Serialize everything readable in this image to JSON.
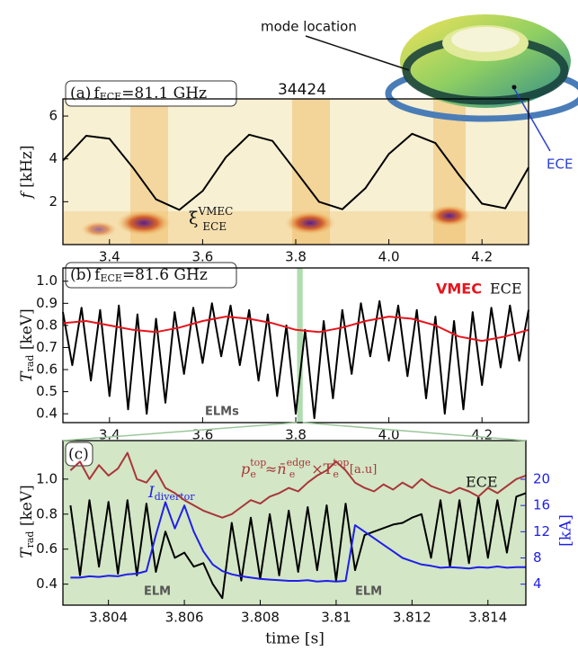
{
  "illustration": {
    "labels": [
      "mode location",
      "ECE"
    ]
  },
  "chart_data": [
    {
      "type": "line",
      "title": "34424",
      "panel_label": "(a)",
      "panel_freq": [
        "f",
        "ECE",
        "=81.1 GHz"
      ],
      "ylabel": [
        "f",
        " [kHz]"
      ],
      "annotation": [
        "ξ",
        "VMEC",
        "ECE"
      ],
      "x": [
        3.3,
        3.35,
        3.4,
        3.45,
        3.5,
        3.55,
        3.6,
        3.65,
        3.7,
        3.75,
        3.8,
        3.85,
        3.9,
        3.95,
        4.0,
        4.05,
        4.1,
        4.15,
        4.2,
        4.25,
        4.3
      ],
      "series": [
        {
          "color": "#000000",
          "values": [
            3.92,
            5.08,
            4.94,
            3.6,
            2.11,
            1.62,
            2.5,
            4.08,
            5.13,
            4.84,
            3.43,
            2.0,
            1.65,
            2.64,
            4.23,
            5.17,
            4.74,
            3.27,
            1.91,
            1.69,
            3.6
          ]
        }
      ],
      "xlim": [
        3.3,
        4.3
      ],
      "ylim": [
        0,
        6.8
      ],
      "xticks": [
        3.4,
        3.6,
        3.8,
        {
          "value": 4.0,
          "label": "4.0"
        },
        4.2
      ],
      "yticks": [
        2,
        4,
        6
      ]
    },
    {
      "type": "line",
      "panel_label": "(b)",
      "panel_freq": [
        "f",
        "ECE",
        "=81.6 GHz"
      ],
      "ylabel": [
        "T",
        "rad",
        " [keV]"
      ],
      "annotations": [
        "ELMs"
      ],
      "series": [
        {
          "name": "ECE",
          "color": "#000000",
          "x": [
            3.3,
            3.32,
            3.34,
            3.36,
            3.38,
            3.4,
            3.42,
            3.44,
            3.46,
            3.48,
            3.5,
            3.52,
            3.54,
            3.56,
            3.58,
            3.6,
            3.62,
            3.64,
            3.66,
            3.68,
            3.7,
            3.72,
            3.74,
            3.76,
            3.78,
            3.8,
            3.82,
            3.84,
            3.86,
            3.88,
            3.9,
            3.92,
            3.94,
            3.96,
            3.98,
            4.0,
            4.02,
            4.04,
            4.06,
            4.08,
            4.1,
            4.12,
            4.14,
            4.16,
            4.18,
            4.2,
            4.22,
            4.24,
            4.26,
            4.28,
            4.3
          ],
          "values": [
            0.86,
            0.62,
            0.88,
            0.55,
            0.87,
            0.48,
            0.89,
            0.42,
            0.85,
            0.4,
            0.83,
            0.45,
            0.86,
            0.58,
            0.88,
            0.63,
            0.9,
            0.66,
            0.89,
            0.62,
            0.87,
            0.55,
            0.85,
            0.48,
            0.8,
            0.4,
            0.78,
            0.38,
            0.82,
            0.47,
            0.87,
            0.58,
            0.9,
            0.66,
            0.91,
            0.64,
            0.89,
            0.57,
            0.87,
            0.47,
            0.84,
            0.4,
            0.82,
            0.42,
            0.86,
            0.53,
            0.88,
            0.61,
            0.89,
            0.64,
            0.87
          ]
        },
        {
          "name": "VMEC",
          "color": "#e8141c",
          "x": [
            3.3,
            3.35,
            3.4,
            3.45,
            3.5,
            3.55,
            3.6,
            3.65,
            3.7,
            3.75,
            3.8,
            3.85,
            3.9,
            3.95,
            4.0,
            4.05,
            4.1,
            4.15,
            4.2,
            4.25,
            4.3
          ],
          "values": [
            0.81,
            0.82,
            0.8,
            0.78,
            0.77,
            0.79,
            0.82,
            0.84,
            0.83,
            0.81,
            0.78,
            0.77,
            0.79,
            0.82,
            0.84,
            0.83,
            0.8,
            0.75,
            0.73,
            0.75,
            0.78
          ]
        }
      ],
      "xlim": [
        3.3,
        4.3
      ],
      "ylim": [
        0.36,
        1.06
      ],
      "xticks": [
        3.4,
        3.6,
        3.8,
        {
          "value": 4.0,
          "label": "4.0"
        },
        4.2
      ],
      "yticks": [
        0.4,
        0.5,
        0.6,
        0.7,
        0.8,
        0.9,
        {
          "value": 1.0,
          "label": "1.0"
        }
      ]
    },
    {
      "type": "line",
      "panel_label": "(c)",
      "xlabel": "time [s]",
      "ylabel": [
        "T",
        "rad",
        " [keV]"
      ],
      "y2label": "[kA]",
      "annotations": [
        "ELM",
        "ELM"
      ],
      "x": [
        3.803,
        3.80325,
        3.8035,
        3.80375,
        3.804,
        3.80425,
        3.8045,
        3.80475,
        3.805,
        3.80525,
        3.8055,
        3.80575,
        3.806,
        3.80625,
        3.8065,
        3.80675,
        3.807,
        3.80725,
        3.8075,
        3.80775,
        3.808,
        3.80825,
        3.8085,
        3.80875,
        3.809,
        3.80925,
        3.8095,
        3.80975,
        3.81,
        3.81025,
        3.8105,
        3.81075,
        3.811,
        3.81125,
        3.8115,
        3.81175,
        3.812,
        3.81225,
        3.8125,
        3.81275,
        3.813,
        3.81325,
        3.8135,
        3.81375,
        3.814,
        3.81425,
        3.8145,
        3.81475,
        3.815
      ],
      "series": [
        {
          "name": "ECE",
          "color": "#000000",
          "values": [
            0.85,
            0.45,
            0.88,
            0.5,
            0.87,
            0.46,
            0.88,
            0.45,
            0.86,
            0.47,
            0.7,
            0.55,
            0.58,
            0.5,
            0.52,
            0.4,
            0.32,
            0.75,
            0.42,
            0.78,
            0.43,
            0.8,
            0.45,
            0.82,
            0.47,
            0.84,
            0.48,
            0.85,
            0.42,
            0.86,
            0.48,
            0.68,
            0.7,
            0.72,
            0.74,
            0.75,
            0.78,
            0.8,
            0.55,
            0.88,
            0.5,
            0.88,
            0.52,
            0.9,
            0.55,
            0.88,
            0.58,
            0.9,
            0.92
          ]
        },
        {
          "name": [
            "I",
            "divertor"
          ],
          "color": "#1f1fe8",
          "axis": "y2",
          "values": [
            5.0,
            5.0,
            5.2,
            5.1,
            5.3,
            5.2,
            5.5,
            5.6,
            6.0,
            11.5,
            16.5,
            12.5,
            16.0,
            12.0,
            9.0,
            7.0,
            6.0,
            5.5,
            5.2,
            5.0,
            4.8,
            4.7,
            4.6,
            4.5,
            4.5,
            4.6,
            4.4,
            4.5,
            4.4,
            4.5,
            13.0,
            12.0,
            11.0,
            10.0,
            9.0,
            8.0,
            7.5,
            7.0,
            6.8,
            6.5,
            6.6,
            6.5,
            6.4,
            6.6,
            6.5,
            6.7,
            6.5,
            6.6,
            6.6
          ]
        },
        {
          "name": [
            "p",
            "e",
            "top",
            "≈",
            "n̄",
            "e",
            "edge",
            "×T",
            "e",
            "top",
            "[a.u]"
          ],
          "color": "#a8363a",
          "values": [
            1.05,
            1.1,
            1.0,
            1.08,
            1.02,
            1.06,
            1.15,
            1.0,
            0.98,
            1.05,
            0.95,
            0.92,
            0.88,
            0.85,
            0.82,
            0.8,
            0.78,
            0.8,
            0.84,
            0.88,
            0.86,
            0.9,
            0.92,
            0.95,
            0.93,
            0.98,
            1.02,
            1.05,
            1.1,
            1.05,
            0.98,
            0.95,
            0.93,
            0.97,
            0.94,
            0.98,
            0.95,
            1.0,
            0.96,
            0.94,
            0.92,
            0.95,
            0.93,
            0.9,
            0.95,
            0.92,
            0.96,
            1.0,
            1.02
          ]
        }
      ],
      "xlim": [
        3.8028,
        3.815
      ],
      "ylim": [
        0.28,
        1.22
      ],
      "y2lim": [
        0.8,
        25.9
      ],
      "xticks": [
        3.804,
        3.806,
        3.808,
        3.81,
        3.812,
        3.814
      ],
      "yticks": [
        0.4,
        0.6,
        0.8,
        {
          "value": 1.0,
          "label": "1.0"
        }
      ],
      "y2ticks": [
        4,
        8,
        12,
        16,
        20
      ]
    }
  ]
}
